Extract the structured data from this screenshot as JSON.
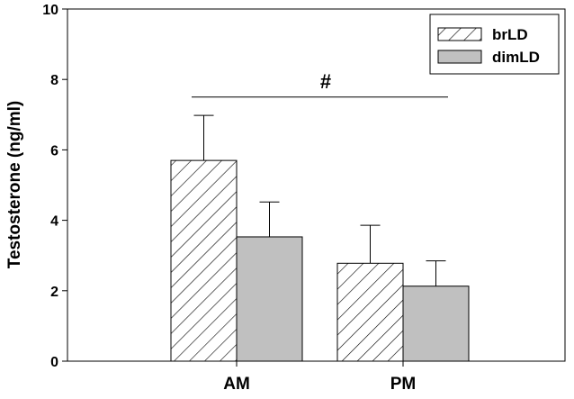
{
  "chart_data": {
    "type": "bar",
    "title": "",
    "xlabel": "",
    "ylabel": "Testosterone (ng/ml)",
    "ylim": [
      0,
      10
    ],
    "yticks": [
      "0",
      "2",
      "4",
      "6",
      "8",
      "10"
    ],
    "categories": [
      "AM",
      "PM"
    ],
    "series": [
      {
        "name": "brLD",
        "values": [
          5.7,
          2.78
        ],
        "errors": [
          1.28,
          1.08
        ],
        "fill": "hatched"
      },
      {
        "name": "dimLD",
        "values": [
          3.53,
          2.13
        ],
        "errors": [
          0.99,
          0.72
        ],
        "fill": "#c0c0c0"
      }
    ],
    "annotation": {
      "text": "#",
      "spans": [
        "AM",
        "PM"
      ],
      "y": 7.5
    },
    "legend": "top-right",
    "grid": false
  }
}
